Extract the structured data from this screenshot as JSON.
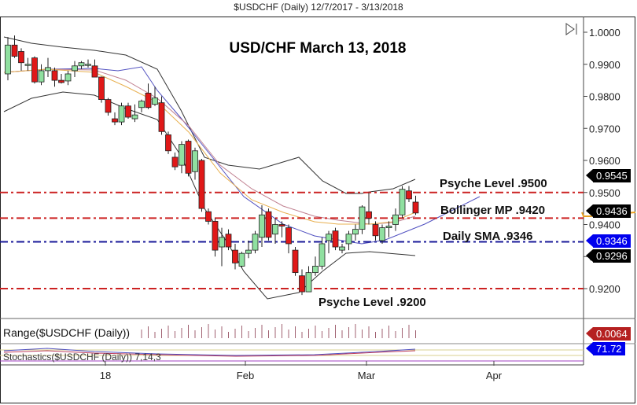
{
  "header": {
    "title": "$USDCHF (Daily)  12/7/2017 - 3/13/2018"
  },
  "chart_data": {
    "type": "candlestick",
    "title": "USD/CHF March 13, 2018",
    "subtitle": "$USDCHF (Daily) 12/7/2017 - 3/13/2018",
    "x_ticks": [
      "18",
      "Feb",
      "Mar",
      "Apr"
    ],
    "y_ticks": [
      "1.0000",
      "0.9900",
      "0.9800",
      "0.9700",
      "0.9600",
      "0.9500",
      "0.9400",
      "0.9300",
      "0.9200"
    ],
    "ylim": [
      0.915,
      1.002
    ],
    "price_tags": [
      {
        "value": "0.9545",
        "color": "#000000"
      },
      {
        "value": "0.9436",
        "color": "#000000"
      },
      {
        "value": "0.9346",
        "color": "#0000ee"
      },
      {
        "value": "0.9296",
        "color": "#000000"
      }
    ],
    "horizontal_lines": [
      {
        "label": "Psyche Level .9500",
        "value": 0.95,
        "color": "#cc2222"
      },
      {
        "label": "Bollinger MP .9420",
        "value": 0.942,
        "color": "#cc2222"
      },
      {
        "label": "Daily SMA .9346",
        "value": 0.9346,
        "color": "#1a1a99"
      },
      {
        "label": "Psyche Level .9200",
        "value": 0.92,
        "color": "#cc2222"
      }
    ],
    "candles_ohlc": [
      [
        0.987,
        0.9985,
        0.985,
        0.996
      ],
      [
        0.996,
        0.999,
        0.992,
        0.9925
      ],
      [
        0.994,
        0.995,
        0.988,
        0.9905
      ],
      [
        0.99,
        0.992,
        0.988,
        0.99
      ],
      [
        0.992,
        0.9925,
        0.984,
        0.9845
      ],
      [
        0.9845,
        0.99,
        0.9835,
        0.988
      ],
      [
        0.988,
        0.992,
        0.986,
        0.989
      ],
      [
        0.988,
        0.989,
        0.983,
        0.985
      ],
      [
        0.985,
        0.987,
        0.984,
        0.9843
      ],
      [
        0.9848,
        0.988,
        0.9835,
        0.987
      ],
      [
        0.988,
        0.991,
        0.986,
        0.9895
      ],
      [
        0.9895,
        0.991,
        0.9885,
        0.9905
      ],
      [
        0.99,
        0.9915,
        0.989,
        0.99
      ],
      [
        0.9895,
        0.9915,
        0.986,
        0.986
      ],
      [
        0.986,
        0.9862,
        0.978,
        0.979
      ],
      [
        0.979,
        0.9795,
        0.974,
        0.975
      ],
      [
        0.973,
        0.975,
        0.971,
        0.972
      ],
      [
        0.972,
        0.978,
        0.971,
        0.977
      ],
      [
        0.977,
        0.978,
        0.973,
        0.9735
      ],
      [
        0.973,
        0.9775,
        0.972,
        0.9742
      ],
      [
        0.9765,
        0.979,
        0.975,
        0.9785
      ],
      [
        0.981,
        0.984,
        0.976,
        0.9765
      ],
      [
        0.9775,
        0.983,
        0.977,
        0.9795
      ],
      [
        0.978,
        0.98,
        0.968,
        0.969
      ],
      [
        0.968,
        0.969,
        0.962,
        0.963
      ],
      [
        0.961,
        0.9625,
        0.957,
        0.958
      ],
      [
        0.9585,
        0.966,
        0.956,
        0.965
      ],
      [
        0.966,
        0.9665,
        0.955,
        0.956
      ],
      [
        0.9565,
        0.964,
        0.954,
        0.963
      ],
      [
        0.96,
        0.9605,
        0.944,
        0.945
      ],
      [
        0.944,
        0.945,
        0.94,
        0.941
      ],
      [
        0.941,
        0.942,
        0.93,
        0.932
      ],
      [
        0.933,
        0.939,
        0.927,
        0.936
      ],
      [
        0.937,
        0.9385,
        0.932,
        0.933
      ],
      [
        0.932,
        0.934,
        0.926,
        0.928
      ],
      [
        0.927,
        0.9315,
        0.9265,
        0.931
      ],
      [
        0.931,
        0.935,
        0.9295,
        0.932
      ],
      [
        0.932,
        0.938,
        0.931,
        0.937
      ],
      [
        0.936,
        0.946,
        0.933,
        0.943
      ],
      [
        0.944,
        0.945,
        0.935,
        0.936
      ],
      [
        0.937,
        0.942,
        0.934,
        0.94
      ],
      [
        0.94,
        0.941,
        0.936,
        0.9395
      ],
      [
        0.939,
        0.94,
        0.931,
        0.934
      ],
      [
        0.932,
        0.933,
        0.924,
        0.925
      ],
      [
        0.924,
        0.926,
        0.918,
        0.919
      ],
      [
        0.919,
        0.927,
        0.919,
        0.925
      ],
      [
        0.925,
        0.93,
        0.924,
        0.927
      ],
      [
        0.927,
        0.936,
        0.926,
        0.934
      ],
      [
        0.935,
        0.938,
        0.931,
        0.937
      ],
      [
        0.938,
        0.939,
        0.932,
        0.933
      ],
      [
        0.932,
        0.934,
        0.931,
        0.933
      ],
      [
        0.934,
        0.938,
        0.932,
        0.937
      ],
      [
        0.937,
        0.94,
        0.935,
        0.9385
      ],
      [
        0.9385,
        0.946,
        0.937,
        0.9455
      ],
      [
        0.944,
        0.95,
        0.94,
        0.942
      ],
      [
        0.94,
        0.941,
        0.935,
        0.9365
      ],
      [
        0.935,
        0.94,
        0.934,
        0.939
      ],
      [
        0.939,
        0.941,
        0.936,
        0.9395
      ],
      [
        0.94,
        0.945,
        0.938,
        0.943
      ],
      [
        0.943,
        0.952,
        0.942,
        0.951
      ],
      [
        0.9505,
        0.952,
        0.947,
        0.948
      ],
      [
        0.947,
        0.949,
        0.943,
        0.9436
      ]
    ],
    "indicators": {
      "bollinger": "20,2",
      "range_label": "Range($USDCHF (Daily))",
      "range_value": "0.0064",
      "stoch_label": "Stochastics($USDCHF (Daily)) 7,14,3",
      "stoch_value": "71.72"
    }
  }
}
